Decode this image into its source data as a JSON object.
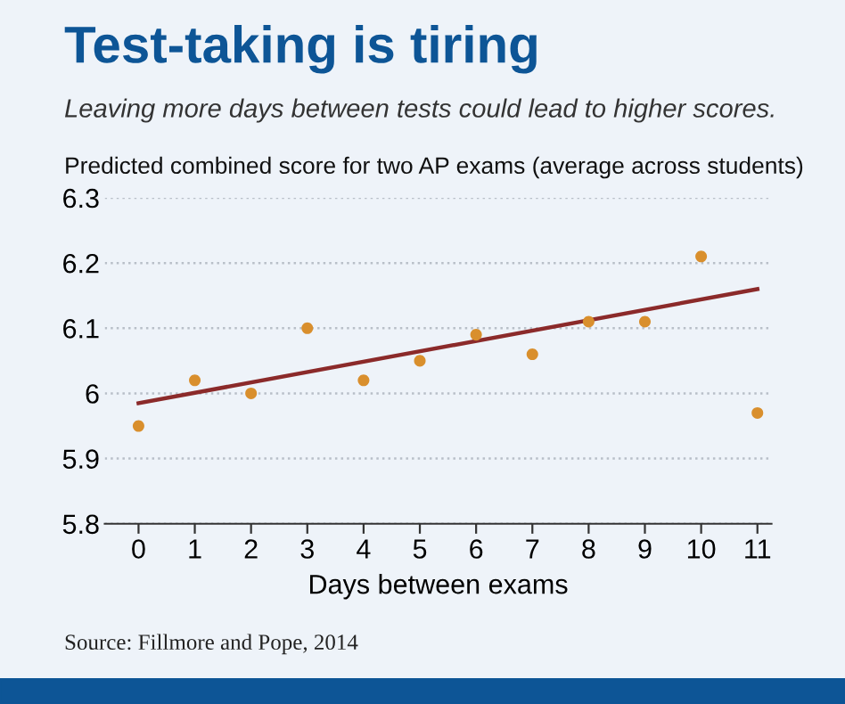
{
  "chart_data": {
    "type": "scatter",
    "title": "Test-taking is tiring",
    "subtitle": "Leaving more days between tests could lead to higher scores.",
    "ylabel": "Predicted combined score for two AP exams (average across students)",
    "xlabel": "Days between exams",
    "annotations": [
      "Source: Fillmore and Pope, 2014"
    ],
    "series": [
      {
        "marker": "circle",
        "color": "#d98f2d",
        "x": [
          0,
          1,
          2,
          3,
          4,
          5,
          6,
          7,
          8,
          9,
          10,
          11
        ],
        "values": [
          5.95,
          6.02,
          6.0,
          6.1,
          6.02,
          6.05,
          6.09,
          6.06,
          6.11,
          6.11,
          6.21,
          5.97
        ]
      },
      {
        "type": "line",
        "marker": "none",
        "color": "#8b2a2a",
        "x": [
          0,
          11
        ],
        "values": [
          5.985,
          6.16
        ]
      }
    ],
    "xlim": [
      -0.6,
      11.25
    ],
    "xticks": [
      0,
      1,
      2,
      3,
      4,
      5,
      6,
      7,
      8,
      9,
      10,
      11
    ],
    "ylim": [
      5.8,
      6.3
    ],
    "yticks": [
      5.8,
      5.9,
      6,
      6.1,
      6.2,
      6.3
    ],
    "grid": "y"
  }
}
